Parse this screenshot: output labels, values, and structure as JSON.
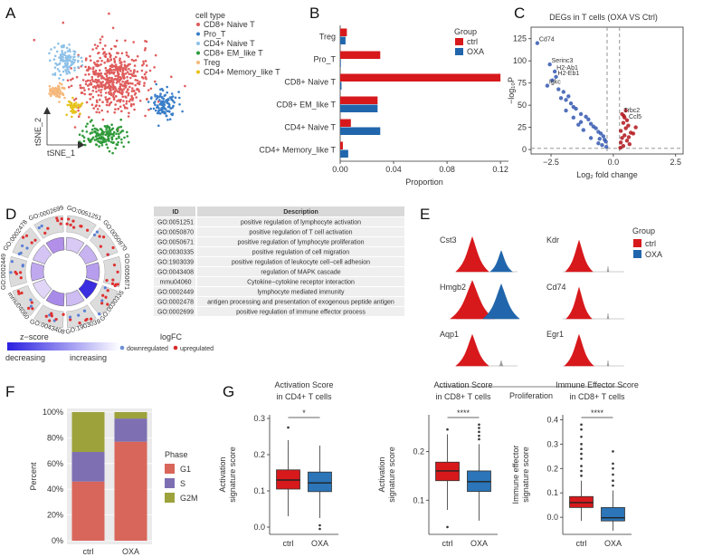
{
  "panels": {
    "A": {
      "letter": "A",
      "xlabel": "tSNE_1",
      "ylabel": "tSNE_2",
      "legend_title": "cell type",
      "legend": [
        {
          "label": "CD8+ Naive T",
          "color": "#e05c5c"
        },
        {
          "label": "Pro_T",
          "color": "#3a7ec8"
        },
        {
          "label": "CD4+ Naive T",
          "color": "#8ec1e8"
        },
        {
          "label": "CD8+ EM_like T",
          "color": "#2f9a3a"
        },
        {
          "label": "Treg",
          "color": "#f5b87a"
        },
        {
          "label": "CD4+ Memory_like T",
          "color": "#e6c21c"
        }
      ]
    },
    "B": {
      "letter": "B"
    },
    "C": {
      "letter": "C"
    },
    "D": {
      "letter": "D",
      "go_labels": [
        "GO:0051251",
        "GO:0050870",
        "GO:0050671",
        "GO:0030335",
        "GO:1903039",
        "GO:0043408",
        "mmu04060",
        "GO:0002449",
        "GO:0002478",
        "GO:0002699"
      ],
      "table_headers": {
        "id": "ID",
        "description": "Description"
      },
      "table_rows": [
        {
          "id": "GO:0051251",
          "description": "positive regulation of lymphocyte activation"
        },
        {
          "id": "GO:0050870",
          "description": "positive regulation of T cell activation"
        },
        {
          "id": "GO:0050671",
          "description": "positive regulation of lymphocyte proliferation"
        },
        {
          "id": "GO:0030335",
          "description": "positive regulation of cell migration"
        },
        {
          "id": "GO:1903039",
          "description": "positive regulation of leukocyte cell−cell adhesion"
        },
        {
          "id": "GO:0043408",
          "description": "regulation of MAPK cascade"
        },
        {
          "id": "mmu04060",
          "description": "Cytokine−cytokine receptor interaction"
        },
        {
          "id": "GO:0002449",
          "description": "lymphocyte mediated immunity"
        },
        {
          "id": "GO:0002478",
          "description": "antigen processing and presentation of exogenous peptide antigen"
        },
        {
          "id": "GO:0002699",
          "description": "positive regulation of immune effector process"
        }
      ],
      "zscore_label": "z−score",
      "zscore_low": "decreasing",
      "zscore_high": "increasing",
      "logfc_label": "logFC",
      "logfc_down": "downregulated",
      "logfc_up": "upregulated"
    },
    "E": {
      "letter": "E",
      "genes_left": [
        "Cst3",
        "Hmgb2",
        "Aqp1"
      ],
      "genes_right": [
        "Kdr",
        "Cd74",
        "Egr1"
      ],
      "xlabel": "Proliferation",
      "legend_title": "Group",
      "legend": [
        {
          "label": "ctrl",
          "color": "#d7191c"
        },
        {
          "label": "OXA",
          "color": "#2166ac"
        }
      ]
    },
    "F": {
      "letter": "F"
    },
    "G": {
      "letter": "G"
    }
  },
  "chart_data": [
    {
      "id": "B",
      "type": "bar",
      "orientation": "horizontal",
      "categories": [
        "Treg",
        "Pro_T",
        "CD8+ Naive T",
        "CD8+ EM_like T",
        "CD4+ Naive T",
        "CD4+ Memory_like T"
      ],
      "series": [
        {
          "name": "ctrl",
          "color": "#d7191c",
          "values": [
            0.005,
            0.03,
            0.12,
            0.028,
            0.008,
            0.002
          ]
        },
        {
          "name": "OXA",
          "color": "#2166ac",
          "values": [
            0.004,
            0.0005,
            0.001,
            0.028,
            0.03,
            0.006
          ]
        }
      ],
      "xlabel": "Proportion",
      "xlim": [
        0,
        0.126
      ],
      "xticks": [
        0.0,
        0.04,
        0.08,
        0.12
      ],
      "xtick_labels": [
        "0.00",
        "0.04",
        "0.08",
        "0.12"
      ],
      "legend_title": "Group"
    },
    {
      "id": "C",
      "type": "scatter",
      "title": "DEGs in T cells (OXA VS Ctrl)",
      "xlabel": "Log₂ fold change",
      "ylabel": "−log₁₀P",
      "xlim": [
        -3.3,
        2.8
      ],
      "ylim": [
        -5,
        138
      ],
      "xticks": [
        -2.5,
        0.0,
        2.5
      ],
      "xtick_labels": [
        "−2.5",
        "0.0",
        "2.5"
      ],
      "yticks": [
        0,
        25,
        50,
        75,
        100,
        125
      ],
      "ytick_labels": [
        "0",
        "25",
        "50",
        "75",
        "100",
        "125"
      ],
      "fc_cutoff": [
        -0.25,
        0.25
      ],
      "p_cutoff": 1.3,
      "points_down": [
        [
          -3.05,
          120
        ],
        [
          -2.55,
          96
        ],
        [
          -2.35,
          88
        ],
        [
          -2.3,
          82
        ],
        [
          -2.45,
          78
        ],
        [
          -2.65,
          72
        ],
        [
          -2.2,
          68
        ],
        [
          -2.0,
          65
        ],
        [
          -1.8,
          60
        ],
        [
          -1.9,
          56
        ],
        [
          -1.7,
          52
        ],
        [
          -1.6,
          48
        ],
        [
          -1.5,
          46
        ],
        [
          -1.3,
          40
        ],
        [
          -1.1,
          37
        ],
        [
          -1.0,
          34
        ],
        [
          -1.3,
          31
        ],
        [
          -0.9,
          29
        ],
        [
          -0.8,
          26
        ],
        [
          -0.7,
          24
        ],
        [
          -1.2,
          22
        ],
        [
          -0.6,
          20
        ],
        [
          -0.5,
          18
        ],
        [
          -0.4,
          15
        ],
        [
          -0.9,
          13
        ],
        [
          -0.35,
          11
        ],
        [
          -0.3,
          9
        ],
        [
          -0.6,
          7
        ],
        [
          -0.45,
          5
        ],
        [
          -0.28,
          3
        ],
        [
          -1.6,
          36
        ],
        [
          -1.9,
          44
        ],
        [
          -2.1,
          58
        ],
        [
          -1.4,
          28
        ],
        [
          -0.55,
          12
        ]
      ],
      "points_up": [
        [
          0.35,
          40
        ],
        [
          0.45,
          36
        ],
        [
          0.55,
          33
        ],
        [
          0.4,
          30
        ],
        [
          0.6,
          27
        ],
        [
          0.5,
          24
        ],
        [
          0.3,
          21
        ],
        [
          0.7,
          19
        ],
        [
          0.45,
          16
        ],
        [
          0.35,
          13
        ],
        [
          0.55,
          10
        ],
        [
          0.3,
          8
        ],
        [
          0.65,
          6
        ],
        [
          0.4,
          4
        ],
        [
          0.28,
          2
        ],
        [
          0.8,
          18
        ],
        [
          0.9,
          25
        ],
        [
          0.5,
          44
        ],
        [
          0.42,
          38
        ],
        [
          0.62,
          14
        ]
      ],
      "labels_down": [
        {
          "text": "Cd74",
          "x": -3.05,
          "y": 120
        },
        {
          "text": "Serinc3",
          "x": -2.55,
          "y": 96
        },
        {
          "text": "H2-Ab1",
          "x": -2.35,
          "y": 88
        },
        {
          "text": "H2-Eb1",
          "x": -2.3,
          "y": 82
        },
        {
          "text": "Igkc",
          "x": -2.65,
          "y": 72
        }
      ],
      "labels_up": [
        {
          "text": "Trbc2",
          "x": 0.35,
          "y": 40
        },
        {
          "text": "Ccl5",
          "x": 0.55,
          "y": 33
        }
      ]
    },
    {
      "id": "E",
      "type": "violin",
      "genes": [
        "Cst3",
        "Hmgb2",
        "Aqp1",
        "Kdr",
        "Cd74",
        "Egr1"
      ]
    },
    {
      "id": "F",
      "type": "bar",
      "stacked": true,
      "categories": [
        "ctrl",
        "OXA"
      ],
      "series": [
        {
          "name": "G1",
          "color": "#d9665a",
          "values": [
            0.46,
            0.77
          ]
        },
        {
          "name": "S",
          "color": "#7e6fb2",
          "values": [
            0.23,
            0.18
          ]
        },
        {
          "name": "G2M",
          "color": "#9da23b",
          "values": [
            0.31,
            0.05
          ]
        }
      ],
      "ylabel": "Percent",
      "yticks": [
        0,
        0.2,
        0.4,
        0.6,
        0.8,
        1.0
      ],
      "ytick_labels": [
        "0%",
        "20%",
        "40%",
        "60%",
        "80%",
        "100%"
      ],
      "legend_title": "Phase"
    },
    {
      "id": "G1",
      "type": "box",
      "title": "Activation Score",
      "subtitle": "in CD4+ T cells",
      "ylabel": "Activation signature score",
      "categories": [
        "ctrl",
        "OXA"
      ],
      "ylim": [
        -0.02,
        0.31
      ],
      "yticks": [
        0.0,
        0.1,
        0.2,
        0.3
      ],
      "ytick_labels": [
        "0.0",
        "0.1",
        "0.2",
        "0.3"
      ],
      "significance": "*",
      "boxes": [
        {
          "name": "ctrl",
          "color": "#d7191c",
          "q1": 0.105,
          "median": 0.13,
          "q3": 0.158,
          "whisker_low": 0.03,
          "whisker_high": 0.24,
          "outliers": [
            0.275
          ]
        },
        {
          "name": "OXA",
          "color": "#2b75b8",
          "q1": 0.098,
          "median": 0.122,
          "q3": 0.152,
          "whisker_low": 0.025,
          "whisker_high": 0.225,
          "outliers": [
            -0.005,
            0.005
          ]
        }
      ]
    },
    {
      "id": "G2",
      "type": "box",
      "title": "Activation Score",
      "subtitle": "in CD8+ T cells",
      "ylabel": "Activation signature score",
      "categories": [
        "ctrl",
        "OXA"
      ],
      "ylim": [
        0.03,
        0.275
      ],
      "yticks": [
        0.1,
        0.2
      ],
      "ytick_labels": [
        "0.1",
        "0.2"
      ],
      "significance": "****",
      "boxes": [
        {
          "name": "ctrl",
          "color": "#d7191c",
          "q1": 0.14,
          "median": 0.16,
          "q3": 0.178,
          "whisker_low": 0.08,
          "whisker_high": 0.235,
          "outliers": [
            0.245,
            0.045
          ]
        },
        {
          "name": "OXA",
          "color": "#2b75b8",
          "q1": 0.118,
          "median": 0.138,
          "q3": 0.16,
          "whisker_low": 0.058,
          "whisker_high": 0.215,
          "outliers": [
            0.225,
            0.232,
            0.24,
            0.248,
            0.255
          ]
        }
      ]
    },
    {
      "id": "G3",
      "type": "box",
      "title": "Immune Effector Score",
      "subtitle": "in CD8+ T cells",
      "ylabel": "Immune effector signature score",
      "categories": [
        "ctrl",
        "OXA"
      ],
      "ylim": [
        -0.07,
        0.42
      ],
      "yticks": [
        0.0,
        0.1,
        0.2,
        0.3,
        0.4
      ],
      "ytick_labels": [
        "0.0",
        "0.1",
        "0.2",
        "0.3",
        "0.4"
      ],
      "significance": "****",
      "boxes": [
        {
          "name": "ctrl",
          "color": "#d7191c",
          "q1": 0.04,
          "median": 0.06,
          "q3": 0.085,
          "whisker_low": -0.015,
          "whisker_high": 0.15,
          "outliers": [
            0.17,
            0.19,
            0.21,
            0.24,
            0.26,
            0.28,
            0.3,
            0.33,
            0.36,
            0.38
          ]
        },
        {
          "name": "OXA",
          "color": "#2b75b8",
          "q1": -0.015,
          "median": -0.002,
          "q3": 0.04,
          "whisker_low": -0.055,
          "whisker_high": 0.11,
          "outliers": [
            0.13,
            0.15,
            0.175,
            0.2,
            0.22,
            0.27
          ]
        }
      ]
    }
  ]
}
